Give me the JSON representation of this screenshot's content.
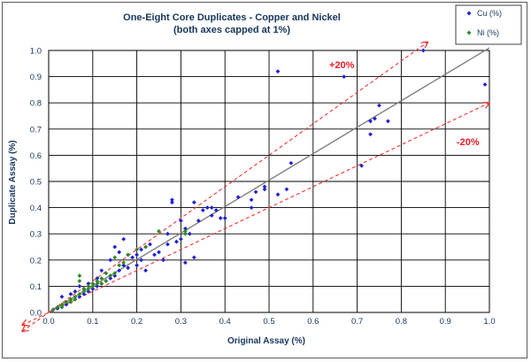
{
  "chart_data": {
    "type": "scatter",
    "title": [
      "One-Eight Core Duplicates - Copper and Nickel",
      "(both axes capped at 1%)"
    ],
    "xlabel": "Original Assay (%)",
    "ylabel": "Duplicate Assay (%)",
    "xlim": [
      0,
      1
    ],
    "ylim": [
      0,
      1
    ],
    "xticks": [
      "0.0",
      "0.1",
      "0.2",
      "0.3",
      "0.4",
      "0.5",
      "0.6",
      "0.7",
      "0.8",
      "0.9",
      "1.0"
    ],
    "yticks": [
      "0.0",
      "0.1",
      "0.2",
      "0.3",
      "0.4",
      "0.5",
      "0.6",
      "0.7",
      "0.8",
      "0.9",
      "1.0"
    ],
    "grid": true,
    "legend_position": "top-right",
    "colors": {
      "Cu (%)": "#1f1fd6",
      "Ni (%)": "#2e8b22",
      "parity": "#7f7f7f",
      "band": "#ee3333"
    },
    "reference_lines": [
      {
        "label": "",
        "kind": "parity",
        "slope": 1.0
      },
      {
        "label": "+20%",
        "kind": "band",
        "slope": 1.2
      },
      {
        "label": "-20%",
        "kind": "band",
        "slope": 0.8
      }
    ],
    "series": [
      {
        "name": "Cu (%)",
        "marker": "diamond",
        "points": [
          [
            0.01,
            0.01
          ],
          [
            0.02,
            0.015
          ],
          [
            0.03,
            0.02
          ],
          [
            0.03,
            0.06
          ],
          [
            0.04,
            0.03
          ],
          [
            0.05,
            0.04
          ],
          [
            0.05,
            0.07
          ],
          [
            0.06,
            0.05
          ],
          [
            0.06,
            0.08
          ],
          [
            0.07,
            0.06
          ],
          [
            0.07,
            0.1
          ],
          [
            0.08,
            0.07
          ],
          [
            0.08,
            0.09
          ],
          [
            0.09,
            0.08
          ],
          [
            0.09,
            0.11
          ],
          [
            0.1,
            0.09
          ],
          [
            0.11,
            0.1
          ],
          [
            0.11,
            0.13
          ],
          [
            0.12,
            0.11
          ],
          [
            0.12,
            0.16
          ],
          [
            0.13,
            0.12
          ],
          [
            0.13,
            0.15
          ],
          [
            0.14,
            0.13
          ],
          [
            0.14,
            0.2
          ],
          [
            0.15,
            0.14
          ],
          [
            0.15,
            0.25
          ],
          [
            0.16,
            0.16
          ],
          [
            0.16,
            0.23
          ],
          [
            0.17,
            0.28
          ],
          [
            0.17,
            0.18
          ],
          [
            0.18,
            0.17
          ],
          [
            0.18,
            0.22
          ],
          [
            0.19,
            0.21
          ],
          [
            0.2,
            0.18
          ],
          [
            0.2,
            0.22
          ],
          [
            0.21,
            0.2
          ],
          [
            0.21,
            0.24
          ],
          [
            0.22,
            0.25
          ],
          [
            0.22,
            0.16
          ],
          [
            0.23,
            0.26
          ],
          [
            0.24,
            0.22
          ],
          [
            0.25,
            0.23
          ],
          [
            0.26,
            0.2
          ],
          [
            0.27,
            0.26
          ],
          [
            0.27,
            0.3
          ],
          [
            0.28,
            0.42
          ],
          [
            0.28,
            0.43
          ],
          [
            0.29,
            0.27
          ],
          [
            0.3,
            0.28
          ],
          [
            0.3,
            0.35
          ],
          [
            0.31,
            0.19
          ],
          [
            0.31,
            0.32
          ],
          [
            0.32,
            0.3
          ],
          [
            0.33,
            0.21
          ],
          [
            0.33,
            0.42
          ],
          [
            0.34,
            0.35
          ],
          [
            0.35,
            0.39
          ],
          [
            0.36,
            0.4
          ],
          [
            0.37,
            0.37
          ],
          [
            0.37,
            0.4
          ],
          [
            0.38,
            0.39
          ],
          [
            0.39,
            0.36
          ],
          [
            0.4,
            0.36
          ],
          [
            0.43,
            0.44
          ],
          [
            0.46,
            0.4
          ],
          [
            0.46,
            0.43
          ],
          [
            0.47,
            0.46
          ],
          [
            0.49,
            0.47
          ],
          [
            0.49,
            0.48
          ],
          [
            0.52,
            0.45
          ],
          [
            0.52,
            0.92
          ],
          [
            0.54,
            0.47
          ],
          [
            0.55,
            0.57
          ],
          [
            0.67,
            0.9
          ],
          [
            0.71,
            0.56
          ],
          [
            0.73,
            0.68
          ],
          [
            0.73,
            0.73
          ],
          [
            0.74,
            0.74
          ],
          [
            0.75,
            0.79
          ],
          [
            0.77,
            0.73
          ],
          [
            0.85,
            1.0
          ],
          [
            0.99,
            0.87
          ]
        ]
      },
      {
        "name": "Ni (%)",
        "marker": "diamond",
        "points": [
          [
            0.01,
            0.01
          ],
          [
            0.02,
            0.02
          ],
          [
            0.03,
            0.03
          ],
          [
            0.03,
            0.02
          ],
          [
            0.04,
            0.04
          ],
          [
            0.05,
            0.05
          ],
          [
            0.05,
            0.04
          ],
          [
            0.06,
            0.06
          ],
          [
            0.06,
            0.05
          ],
          [
            0.07,
            0.07
          ],
          [
            0.07,
            0.12
          ],
          [
            0.07,
            0.14
          ],
          [
            0.08,
            0.08
          ],
          [
            0.08,
            0.09
          ],
          [
            0.09,
            0.1
          ],
          [
            0.09,
            0.09
          ],
          [
            0.1,
            0.1
          ],
          [
            0.1,
            0.11
          ],
          [
            0.11,
            0.11
          ],
          [
            0.11,
            0.12
          ],
          [
            0.12,
            0.13
          ],
          [
            0.12,
            0.11
          ],
          [
            0.13,
            0.15
          ],
          [
            0.13,
            0.12
          ],
          [
            0.14,
            0.14
          ],
          [
            0.15,
            0.15
          ],
          [
            0.15,
            0.21
          ],
          [
            0.16,
            0.18
          ],
          [
            0.17,
            0.19
          ],
          [
            0.18,
            0.22
          ],
          [
            0.2,
            0.24
          ],
          [
            0.22,
            0.25
          ],
          [
            0.25,
            0.31
          ],
          [
            0.31,
            0.31
          ],
          [
            0.31,
            0.3
          ]
        ]
      }
    ]
  }
}
